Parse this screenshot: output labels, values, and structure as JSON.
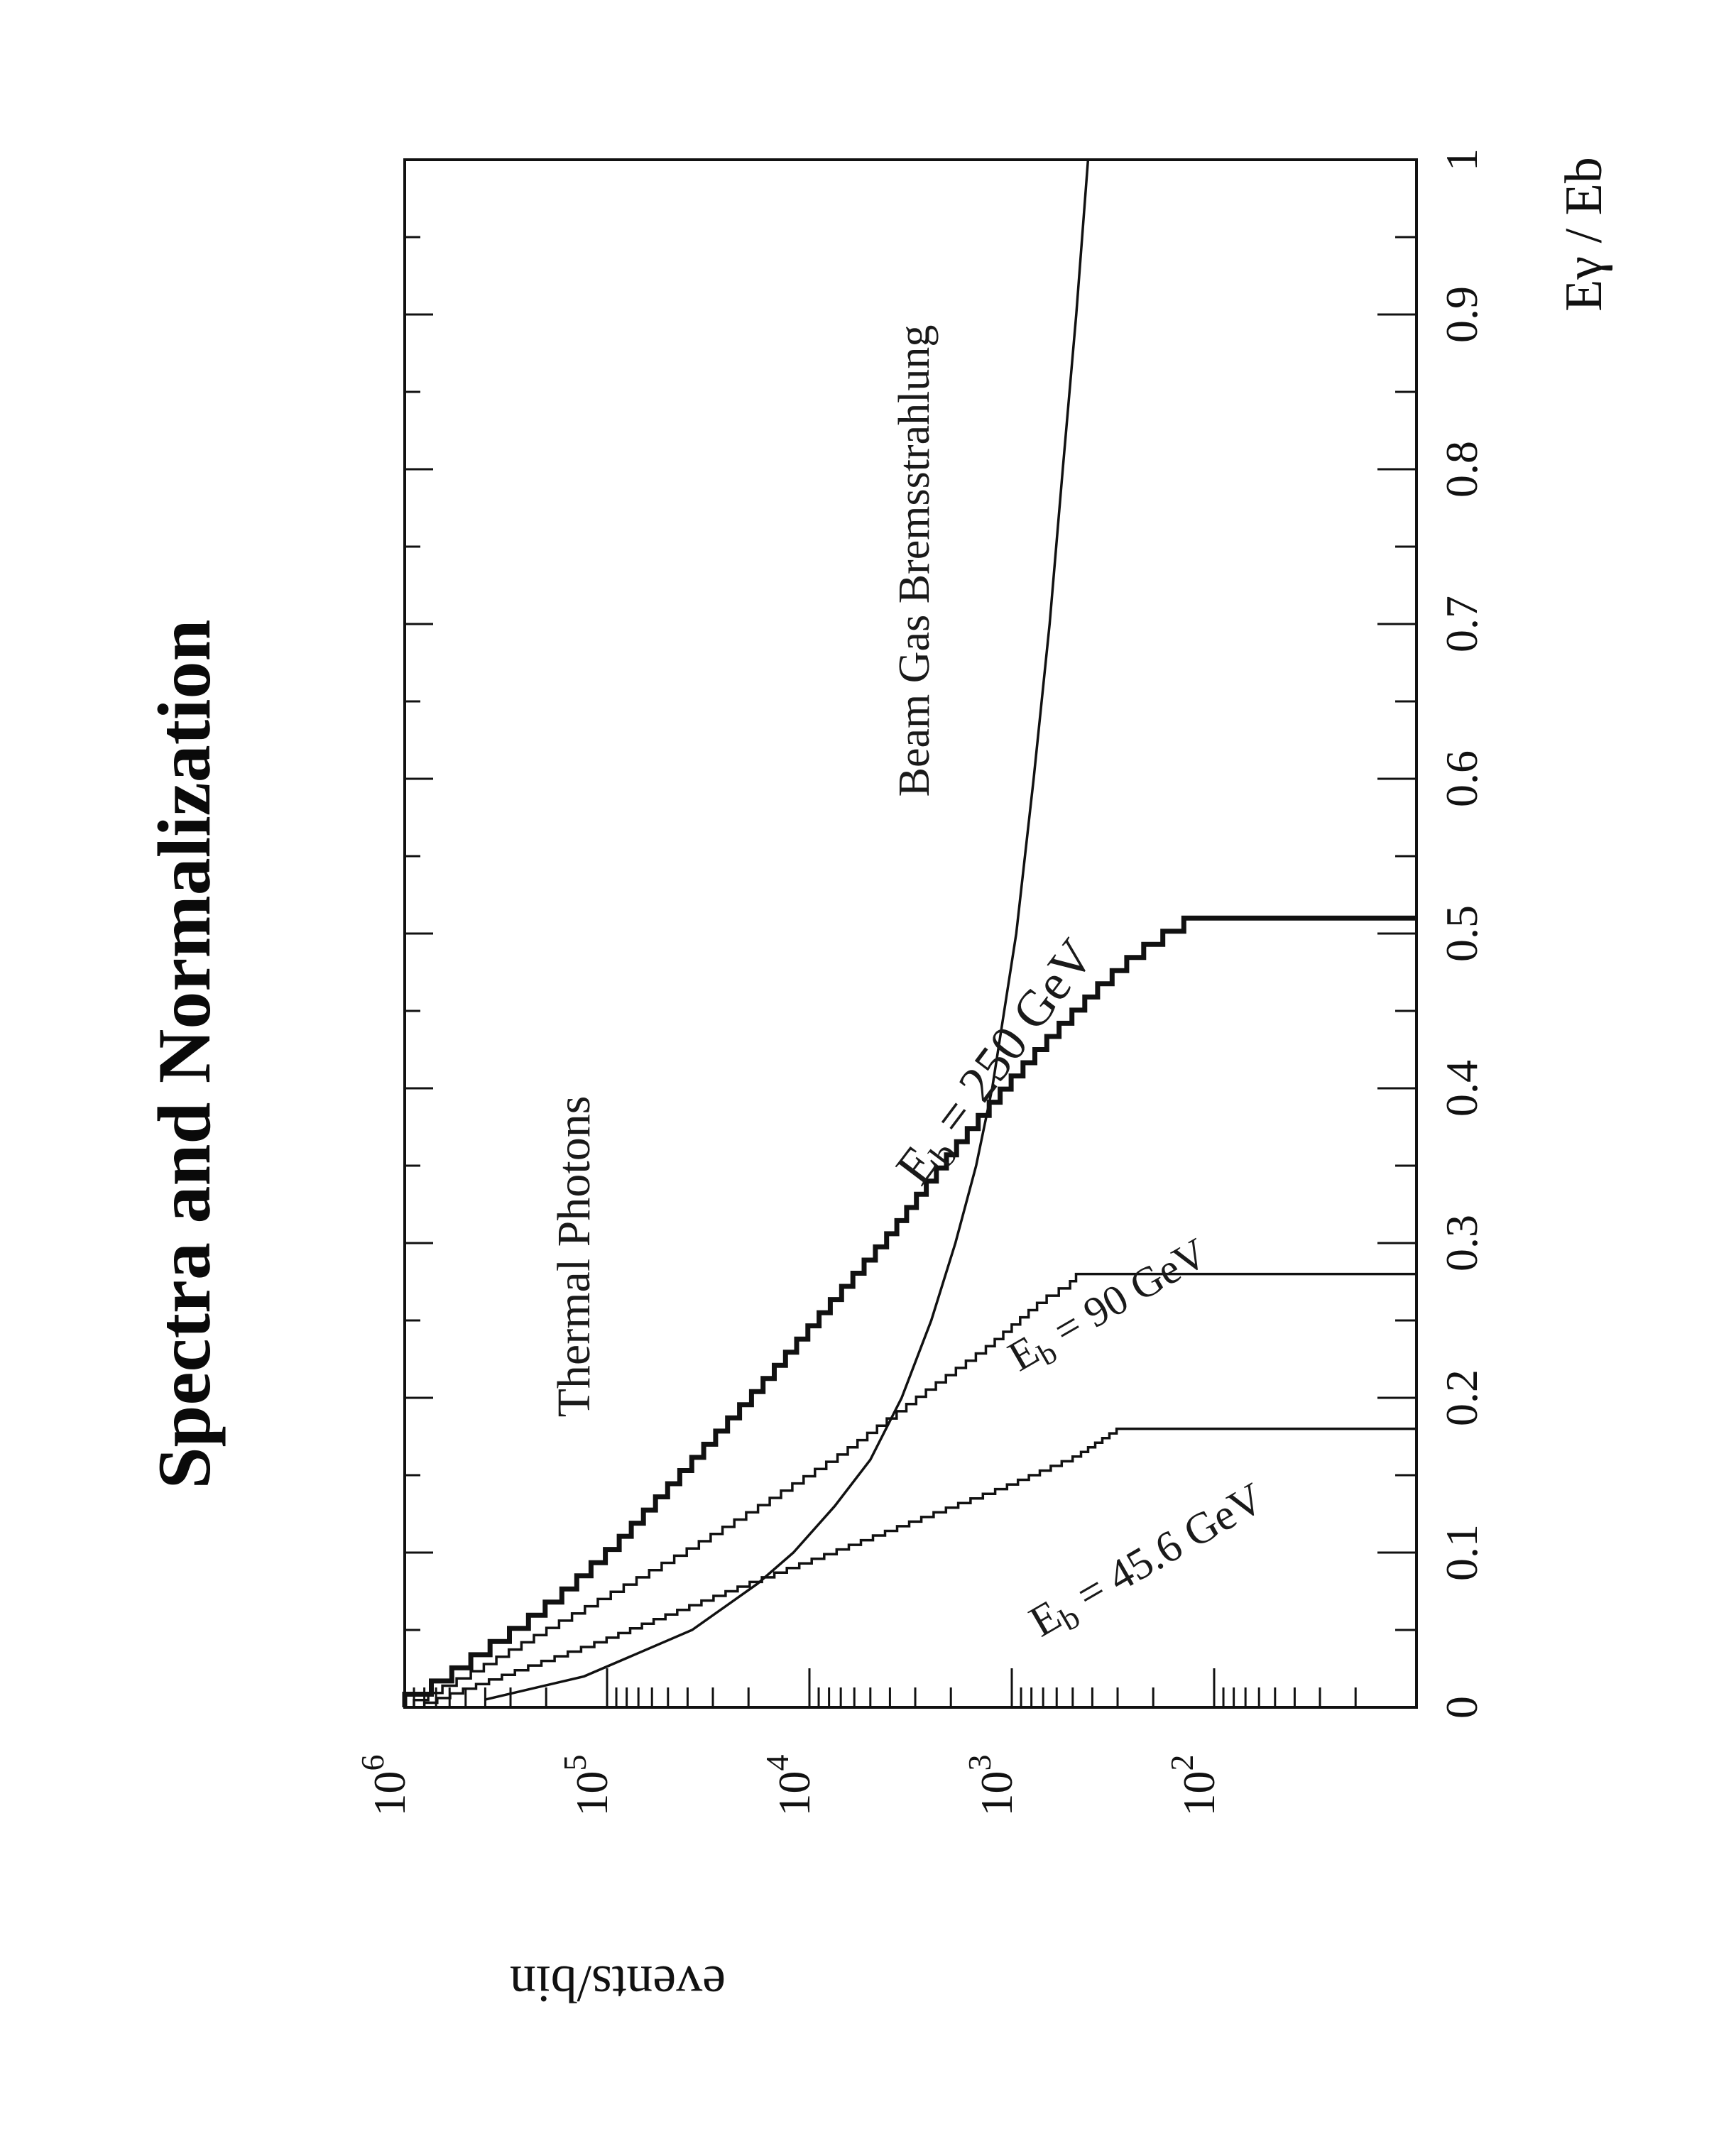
{
  "page_title": "Spectra and Normalization",
  "chart_data": {
    "type": "line",
    "title": "",
    "xlabel": "Eγ / Eb",
    "ylabel": "events/bin",
    "xlim": [
      0,
      1
    ],
    "ylim": [
      10,
      1000000
    ],
    "yscale": "log",
    "grid": false,
    "x_ticks": [
      "0",
      "0.1",
      "0.2",
      "0.3",
      "0.4",
      "0.5",
      "0.6",
      "0.7",
      "0.8",
      "0.9",
      "1"
    ],
    "y_ticks": [
      {
        "base": "10",
        "exp": "2"
      },
      {
        "base": "10",
        "exp": "3"
      },
      {
        "base": "10",
        "exp": "4"
      },
      {
        "base": "10",
        "exp": "5"
      },
      {
        "base": "10",
        "exp": "6"
      }
    ],
    "annotations": {
      "thermal": "Thermal Photons",
      "beamgas": "Beam Gas Bremsstrahlung",
      "eb250_e": "E",
      "eb250_sub": "b",
      "eb250_rest": " = 250 GeV",
      "eb90_e": "E",
      "eb90_sub": "b",
      "eb90_rest": " = 90  GeV",
      "eb45_e": "E",
      "eb45_sub": "b",
      "eb45_rest": " = 45.6 GeV"
    },
    "series": [
      {
        "key": "eb250",
        "style": "step",
        "x": [
          0,
          0.01,
          0.03,
          0.05,
          0.07,
          0.1,
          0.15,
          0.2,
          0.25,
          0.3,
          0.33,
          0.36,
          0.4,
          0.43,
          0.46,
          0.48,
          0.5,
          0.51
        ],
        "y": [
          1000000,
          700000,
          420000,
          250000,
          160000,
          90000,
          40000,
          18000,
          8500,
          4000,
          2700,
          1800,
          1000,
          620,
          370,
          250,
          150,
          100
        ]
      },
      {
        "key": "eb90",
        "style": "step",
        "x": [
          0,
          0.02,
          0.05,
          0.08,
          0.1,
          0.13,
          0.16,
          0.2,
          0.23,
          0.26,
          0.27,
          0.28
        ],
        "y": [
          900000,
          450000,
          180000,
          70000,
          38000,
          16000,
          7000,
          2700,
          1300,
          700,
          520,
          450
        ]
      },
      {
        "key": "eb45",
        "style": "step",
        "x": [
          0,
          0.02,
          0.04,
          0.06,
          0.08,
          0.1,
          0.12,
          0.14,
          0.16,
          0.18
        ],
        "y": [
          800000,
          300000,
          110000,
          45000,
          18000,
          7000,
          2800,
          1100,
          480,
          280
        ]
      },
      {
        "key": "beamgas",
        "style": "line",
        "x": [
          0.005,
          0.02,
          0.05,
          0.08,
          0.1,
          0.13,
          0.16,
          0.2,
          0.25,
          0.3,
          0.35,
          0.4,
          0.5,
          0.6,
          0.7,
          0.8,
          0.9,
          1.0
        ],
        "y": [
          400000,
          130000,
          38000,
          18000,
          12000,
          7500,
          5000,
          3500,
          2500,
          1900,
          1500,
          1250,
          950,
          780,
          650,
          560,
          480,
          420
        ]
      }
    ]
  }
}
